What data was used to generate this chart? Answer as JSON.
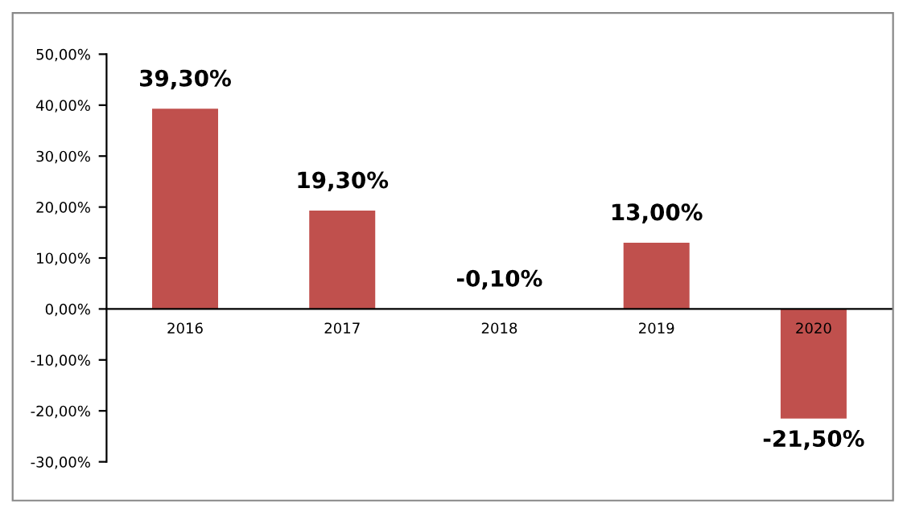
{
  "chart_data": {
    "type": "bar",
    "categories": [
      "2016",
      "2017",
      "2018",
      "2019",
      "2020"
    ],
    "values": [
      39.3,
      19.3,
      -0.1,
      13.0,
      -21.5
    ],
    "value_labels": [
      "39,30%",
      "19,30%",
      "-0,10%",
      "13,00%",
      "-21,50%"
    ],
    "color": "#c0504d",
    "ylim": [
      -30,
      50
    ],
    "yticks": [
      {
        "value": -30,
        "label": "-30,00%"
      },
      {
        "value": -20,
        "label": "-20,00%"
      },
      {
        "value": -10,
        "label": "-10,00%"
      },
      {
        "value": 0,
        "label": "0,00%"
      },
      {
        "value": 10,
        "label": "10,00%"
      },
      {
        "value": 20,
        "label": "20,00%"
      },
      {
        "value": 30,
        "label": "30,00%"
      },
      {
        "value": 40,
        "label": "40,00%"
      },
      {
        "value": 50,
        "label": "50,00%"
      }
    ],
    "grid": false,
    "legend": false
  }
}
